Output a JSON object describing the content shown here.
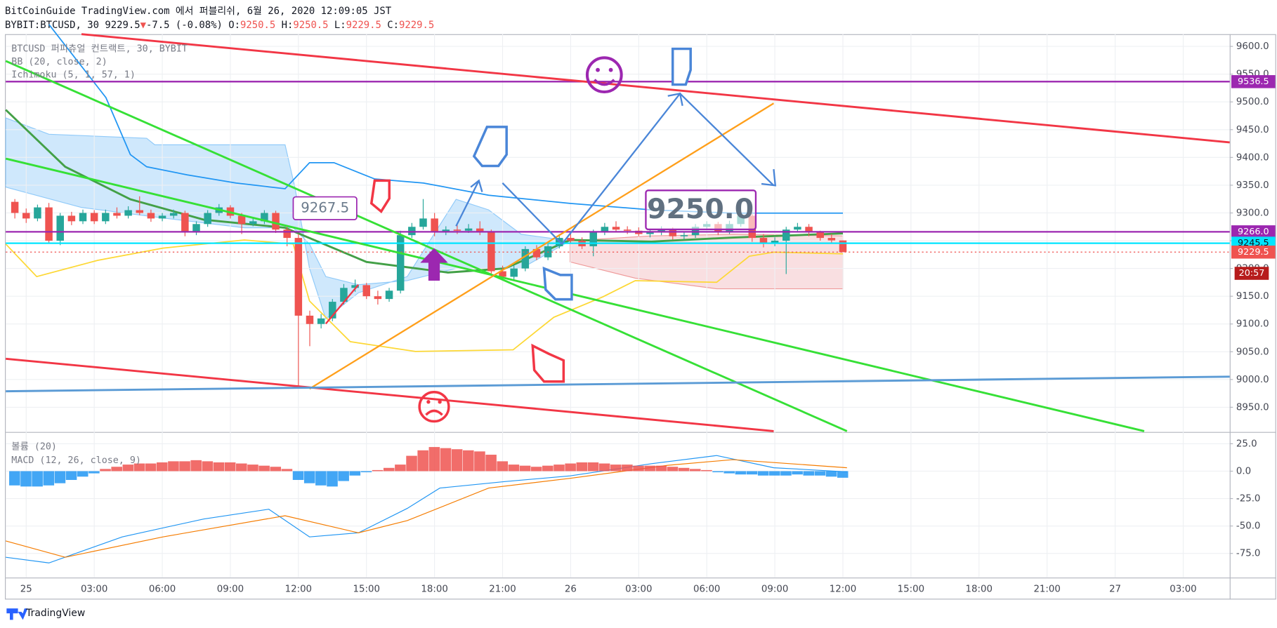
{
  "header": {
    "line1": "BitCoinGuide TradingView.com 에서 퍼블리쉬, 6월 26, 2020 12:09:05 JST",
    "symbol": "BYBIT:BTCUSD, 30",
    "last": "9229.5",
    "arrow": "▼",
    "change": "-7.5 (-0.08%)",
    "ohlc": [
      {
        "key": "O:",
        "value": "9250.5"
      },
      {
        "key": "H:",
        "value": "9250.5"
      },
      {
        "key": "L:",
        "value": "9229.5"
      },
      {
        "key": "C:",
        "value": "9229.5"
      }
    ]
  },
  "legend": [
    "BTCUSD 퍼피츄얼 컨트랙트, 30, BYBIT",
    "BB (20, close, 2)",
    "Ichimoku (5, 1, 57, 1)"
  ],
  "footer": "TradingView",
  "annotations": [
    "9267.5",
    "9250.0"
  ],
  "countdown": "20:57",
  "chart_data": [
    {
      "type": "candlestick",
      "up_color": "#26a69a",
      "down_color": "#ef5350",
      "grid": true,
      "ylim": [
        8907,
        9622
      ],
      "yticks": [
        {
          "value": 8950,
          "label": "8950.0"
        },
        {
          "value": 9000,
          "label": "9000.0"
        },
        {
          "value": 9050,
          "label": "9050.0"
        },
        {
          "value": 9100,
          "label": "9100.0"
        },
        {
          "value": 9150,
          "label": "9150.0"
        },
        {
          "value": 9200,
          "label": "9200.0"
        },
        {
          "value": 9250,
          "label": "9250.0"
        },
        {
          "value": 9300,
          "label": "9300.0"
        },
        {
          "value": 9350,
          "label": "9350.0"
        },
        {
          "value": 9400,
          "label": "9400.0"
        },
        {
          "value": 9450,
          "label": "9450.0"
        },
        {
          "value": 9500,
          "label": "9500.0"
        },
        {
          "value": 9550,
          "label": "9550.0"
        },
        {
          "value": 9600,
          "label": "9600.0"
        }
      ],
      "xlim": [
        -0.8,
        107.1
      ],
      "xticks": [
        {
          "value": 1,
          "label": "25"
        },
        {
          "value": 7,
          "label": "03:00"
        },
        {
          "value": 13,
          "label": "06:00"
        },
        {
          "value": 19,
          "label": "09:00"
        },
        {
          "value": 25,
          "label": "12:00"
        },
        {
          "value": 31,
          "label": "15:00"
        },
        {
          "value": 37,
          "label": "18:00"
        },
        {
          "value": 43,
          "label": "21:00"
        },
        {
          "value": 49,
          "label": "26"
        },
        {
          "value": 55,
          "label": "03:00"
        },
        {
          "value": 61,
          "label": "06:00"
        },
        {
          "value": 67,
          "label": "09:00"
        },
        {
          "value": 73,
          "label": "12:00"
        },
        {
          "value": 79,
          "label": "15:00"
        },
        {
          "value": 85,
          "label": "18:00"
        },
        {
          "value": 91,
          "label": "21:00"
        },
        {
          "value": 97,
          "label": "27"
        },
        {
          "value": 103,
          "label": "03:00"
        }
      ],
      "price_labels": [
        {
          "value": 9536.5,
          "label": "9536.5",
          "color": "#9c27b0"
        },
        {
          "value": 9266,
          "label": "9266.0",
          "color": "#9c27b0"
        },
        {
          "value": 9245.5,
          "label": "9245.5",
          "color": "#00e5ff"
        },
        {
          "value": 9229.5,
          "label": "9229.5",
          "color": "#ef5350"
        }
      ],
      "candles": [
        [
          9320,
          9325,
          9290,
          9300
        ],
        [
          9300,
          9308,
          9282,
          9290
        ],
        [
          9290,
          9315,
          9285,
          9310
        ],
        [
          9310,
          9318,
          9245,
          9250
        ],
        [
          9250,
          9300,
          9242,
          9295
        ],
        [
          9295,
          9302,
          9278,
          9285
        ],
        [
          9285,
          9306,
          9280,
          9300
        ],
        [
          9300,
          9305,
          9280,
          9285
        ],
        [
          9285,
          9306,
          9280,
          9300
        ],
        [
          9300,
          9310,
          9290,
          9295
        ],
        [
          9295,
          9312,
          9290,
          9305
        ],
        [
          9305,
          9330,
          9296,
          9300
        ],
        [
          9300,
          9306,
          9284,
          9290
        ],
        [
          9290,
          9300,
          9285,
          9295
        ],
        [
          9295,
          9306,
          9290,
          9300
        ],
        [
          9300,
          9304,
          9258,
          9265
        ],
        [
          9265,
          9285,
          9260,
          9280
        ],
        [
          9280,
          9305,
          9275,
          9300
        ],
        [
          9300,
          9316,
          9295,
          9310
        ],
        [
          9310,
          9314,
          9290,
          9295
        ],
        [
          9295,
          9300,
          9262,
          9280
        ],
        [
          9280,
          9292,
          9276,
          9285
        ],
        [
          9285,
          9305,
          9280,
          9300
        ],
        [
          9300,
          9304,
          9264,
          9270
        ],
        [
          9270,
          9278,
          9240,
          9255
        ],
        [
          9255,
          9262,
          8985,
          9115
        ],
        [
          9115,
          9124,
          9060,
          9100
        ],
        [
          9100,
          9118,
          9092,
          9110
        ],
        [
          9110,
          9145,
          9105,
          9140
        ],
        [
          9140,
          9172,
          9135,
          9165
        ],
        [
          9165,
          9180,
          9158,
          9170
        ],
        [
          9170,
          9174,
          9145,
          9150
        ],
        [
          9150,
          9160,
          9135,
          9145
        ],
        [
          9145,
          9165,
          9140,
          9160
        ],
        [
          9160,
          9268,
          9155,
          9260
        ],
        [
          9260,
          9282,
          9255,
          9275
        ],
        [
          9275,
          9325,
          9270,
          9290
        ],
        [
          9290,
          9300,
          9258,
          9265
        ],
        [
          9265,
          9276,
          9260,
          9270
        ],
        [
          9270,
          9278,
          9262,
          9268
        ],
        [
          9268,
          9280,
          9264,
          9272
        ],
        [
          9272,
          9285,
          9260,
          9265
        ],
        [
          9265,
          9270,
          9190,
          9195
        ],
        [
          9195,
          9205,
          9178,
          9185
        ],
        [
          9185,
          9205,
          9180,
          9200
        ],
        [
          9200,
          9240,
          9195,
          9235
        ],
        [
          9235,
          9242,
          9215,
          9220
        ],
        [
          9220,
          9245,
          9215,
          9240
        ],
        [
          9240,
          9262,
          9236,
          9255
        ],
        [
          9255,
          9262,
          9245,
          9250
        ],
        [
          9250,
          9256,
          9235,
          9240
        ],
        [
          9240,
          9270,
          9222,
          9265
        ],
        [
          9265,
          9282,
          9260,
          9275
        ],
        [
          9275,
          9285,
          9266,
          9270
        ],
        [
          9270,
          9276,
          9262,
          9268
        ],
        [
          9268,
          9274,
          9258,
          9262
        ],
        [
          9262,
          9270,
          9256,
          9265
        ],
        [
          9265,
          9276,
          9260,
          9270
        ],
        [
          9270,
          9274,
          9252,
          9258
        ],
        [
          9258,
          9266,
          9252,
          9260
        ],
        [
          9260,
          9280,
          9255,
          9275
        ],
        [
          9275,
          9285,
          9270,
          9280
        ],
        [
          9280,
          9284,
          9260,
          9265
        ],
        [
          9265,
          9286,
          9262,
          9280
        ],
        [
          9280,
          9300,
          9275,
          9295
        ],
        [
          9295,
          9298,
          9248,
          9255
        ],
        [
          9255,
          9262,
          9238,
          9245
        ],
        [
          9245,
          9256,
          9240,
          9250
        ],
        [
          9250,
          9275,
          9190,
          9270
        ],
        [
          9270,
          9282,
          9265,
          9275
        ],
        [
          9275,
          9280,
          9258,
          9265
        ],
        [
          9265,
          9268,
          9250,
          9255
        ],
        [
          9255,
          9262,
          9245,
          9250.5
        ],
        [
          9250.5,
          9250.5,
          9229.5,
          9229.5
        ]
      ]
    },
    {
      "type": "bar",
      "legend": [
        "볼륨 (20)",
        "MACD (12, 26, close, 9)"
      ],
      "up_color": "#ef5350",
      "down_color": "#2196f3",
      "ylim": [
        -97,
        35
      ],
      "yticks": [
        {
          "value": 25,
          "label": "25.0"
        },
        {
          "value": 0,
          "label": "0.0"
        },
        {
          "value": -25,
          "label": "-25.0"
        },
        {
          "value": -50,
          "label": "-50.0"
        },
        {
          "value": -75,
          "label": "-75.0"
        }
      ],
      "values": [
        -13,
        -14,
        -14,
        -13,
        -11,
        -8,
        -5,
        -2,
        2,
        4,
        6,
        7,
        7,
        8,
        9,
        9,
        10,
        9,
        8,
        8,
        7,
        6,
        5,
        4,
        2,
        -8,
        -11,
        -13,
        -14,
        -9,
        -4,
        -1,
        1,
        3,
        6,
        14,
        19,
        22,
        21,
        20,
        19,
        18,
        15,
        9,
        6,
        5,
        4,
        5,
        6,
        7,
        8,
        8,
        7,
        6,
        6,
        5,
        5,
        5,
        4,
        3,
        2,
        1,
        -1,
        -2,
        -3,
        -3,
        -4,
        -4,
        -4,
        -3,
        -4,
        -4,
        -5,
        -6
      ]
    }
  ]
}
